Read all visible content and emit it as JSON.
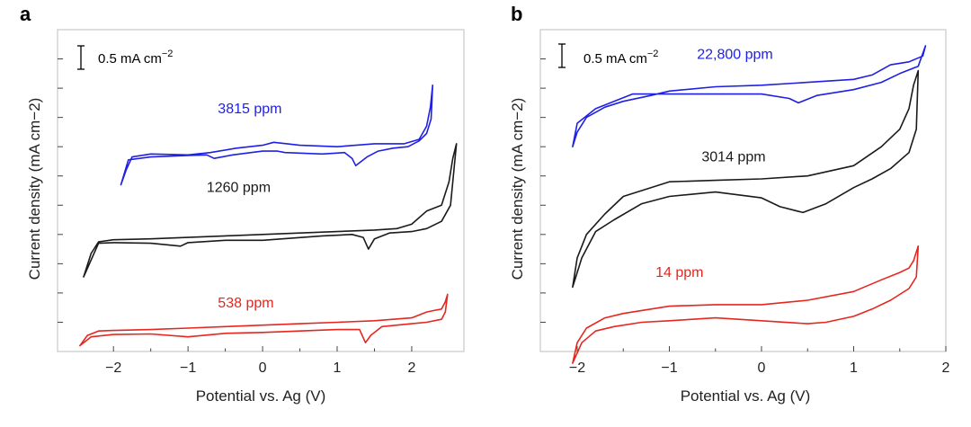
{
  "chart_data": [
    {
      "type": "line",
      "panel_label": "a",
      "xlabel": "Potential vs. Ag (V)",
      "ylabel": "Current density (mA cm−2)",
      "xlim": [
        -2.75,
        2.7
      ],
      "ylim": [
        0,
        11
      ],
      "x_ticks": [
        -2,
        -1,
        0,
        1,
        2
      ],
      "x_tick_labels": [
        "−2",
        "−1",
        "0",
        "1",
        "2"
      ],
      "scale_bar": {
        "label_main": "0.5 mA cm",
        "label_sup": "−2",
        "length": 0.5
      },
      "series": [
        {
          "name": "3815 ppm",
          "label": "3815 ppm",
          "color": "#1f1fe6",
          "label_at": [
            -0.6,
            8.15
          ],
          "x": [
            -1.9,
            -1.83,
            -1.75,
            -1.5,
            -1.0,
            -0.7,
            -0.35,
            0.0,
            0.15,
            0.5,
            1.0,
            1.5,
            1.9,
            2.1,
            2.2,
            2.25,
            2.28,
            2.26,
            2.2,
            2.1,
            1.95,
            1.75,
            1.55,
            1.4,
            1.25,
            1.2,
            1.1,
            0.8,
            0.3,
            0.2,
            0.0,
            -0.4,
            -0.65,
            -0.75,
            -1.0,
            -1.5,
            -1.8,
            -1.9
          ],
          "y": [
            5.7,
            6.2,
            6.65,
            6.75,
            6.72,
            6.8,
            6.95,
            7.05,
            7.15,
            7.05,
            7.0,
            7.1,
            7.1,
            7.25,
            7.7,
            8.35,
            9.1,
            7.95,
            7.45,
            7.2,
            7.0,
            6.95,
            6.85,
            6.65,
            6.35,
            6.6,
            6.8,
            6.75,
            6.8,
            6.85,
            6.85,
            6.72,
            6.6,
            6.72,
            6.7,
            6.65,
            6.55,
            5.7
          ]
        },
        {
          "name": "1260 ppm",
          "label": "1260 ppm",
          "color": "#1a1a1a",
          "label_at": [
            -0.75,
            5.45
          ],
          "x": [
            -2.4,
            -2.3,
            -2.2,
            -2.0,
            -1.5,
            -1.0,
            -0.5,
            0.0,
            0.5,
            1.0,
            1.5,
            1.8,
            2.0,
            2.2,
            2.4,
            2.5,
            2.55,
            2.6,
            2.52,
            2.4,
            2.2,
            2.0,
            1.7,
            1.5,
            1.42,
            1.35,
            1.2,
            0.8,
            0.0,
            -0.5,
            -1.0,
            -1.1,
            -1.5,
            -2.0,
            -2.2,
            -2.4
          ],
          "y": [
            2.55,
            3.35,
            3.75,
            3.82,
            3.85,
            3.9,
            3.95,
            4.0,
            4.05,
            4.1,
            4.15,
            4.2,
            4.35,
            4.8,
            5.0,
            5.8,
            6.6,
            7.1,
            5.0,
            4.45,
            4.2,
            4.1,
            4.05,
            3.85,
            3.5,
            3.9,
            4.0,
            3.95,
            3.8,
            3.8,
            3.72,
            3.6,
            3.7,
            3.72,
            3.7,
            2.55
          ]
        },
        {
          "name": "538 ppm",
          "label": "538 ppm",
          "color": "#e6261f",
          "label_at": [
            -0.6,
            1.5
          ],
          "x": [
            -2.45,
            -2.35,
            -2.2,
            -2.0,
            -1.5,
            -1.0,
            -0.5,
            0.0,
            0.5,
            1.0,
            1.5,
            2.0,
            2.2,
            2.3,
            2.4,
            2.45,
            2.48,
            2.45,
            2.4,
            2.2,
            2.0,
            1.6,
            1.45,
            1.38,
            1.3,
            1.0,
            0.0,
            -0.5,
            -1.0,
            -1.5,
            -2.0,
            -2.3,
            -2.45
          ],
          "y": [
            0.2,
            0.55,
            0.7,
            0.72,
            0.75,
            0.8,
            0.85,
            0.9,
            0.95,
            1.0,
            1.05,
            1.15,
            1.35,
            1.4,
            1.45,
            1.7,
            1.95,
            1.35,
            1.1,
            1.0,
            0.95,
            0.85,
            0.55,
            0.3,
            0.75,
            0.75,
            0.65,
            0.62,
            0.5,
            0.6,
            0.58,
            0.5,
            0.2
          ]
        }
      ]
    },
    {
      "type": "line",
      "panel_label": "b",
      "xlabel": "Potential vs. Ag (V)",
      "ylabel": "Current density (mA cm−2)",
      "xlim": [
        -2.4,
        2.0
      ],
      "ylim": [
        0,
        11
      ],
      "x_ticks": [
        -2,
        -1,
        0,
        1,
        2
      ],
      "x_tick_labels": [
        "−2",
        "−1",
        "0",
        "1",
        "2"
      ],
      "scale_bar": {
        "label_main": "0.5 mA cm",
        "label_sup": "−2",
        "length": 0.5
      },
      "series": [
        {
          "name": "22,800 ppm",
          "label": "22,800 ppm",
          "color": "#1f1fe6",
          "label_at": [
            -0.7,
            10.0
          ],
          "x": [
            -2.05,
            -2.0,
            -1.9,
            -1.7,
            -1.5,
            -1.2,
            -1.0,
            -0.5,
            0.0,
            0.5,
            1.0,
            1.2,
            1.4,
            1.6,
            1.75,
            1.78,
            1.7,
            1.5,
            1.3,
            1.0,
            0.6,
            0.4,
            0.3,
            0.0,
            -0.5,
            -1.0,
            -1.4,
            -1.6,
            -1.8,
            -2.0,
            -2.05
          ],
          "y": [
            7.0,
            7.5,
            8.0,
            8.35,
            8.55,
            8.75,
            8.9,
            9.05,
            9.1,
            9.2,
            9.3,
            9.45,
            9.8,
            9.9,
            10.1,
            10.45,
            9.75,
            9.5,
            9.2,
            8.95,
            8.75,
            8.5,
            8.65,
            8.8,
            8.8,
            8.8,
            8.8,
            8.55,
            8.3,
            7.8,
            7.0
          ]
        },
        {
          "name": "3014 ppm",
          "label": "3014 ppm",
          "color": "#1a1a1a",
          "label_at": [
            -0.65,
            6.5
          ],
          "x": [
            -2.05,
            -2.0,
            -1.9,
            -1.7,
            -1.5,
            -1.0,
            -0.5,
            0.0,
            0.5,
            1.0,
            1.3,
            1.5,
            1.6,
            1.65,
            1.7,
            1.68,
            1.6,
            1.4,
            1.2,
            1.0,
            0.7,
            0.45,
            0.2,
            0.0,
            -0.5,
            -1.0,
            -1.3,
            -1.6,
            -1.8,
            -1.95,
            -2.05
          ],
          "y": [
            2.2,
            3.2,
            4.0,
            4.7,
            5.3,
            5.8,
            5.85,
            5.9,
            6.0,
            6.35,
            7.0,
            7.6,
            8.3,
            9.1,
            9.6,
            7.6,
            6.8,
            6.25,
            5.9,
            5.6,
            5.05,
            4.75,
            4.95,
            5.25,
            5.45,
            5.3,
            5.05,
            4.5,
            4.1,
            3.2,
            2.2
          ]
        },
        {
          "name": "14 ppm",
          "label": "14 ppm",
          "color": "#e6261f",
          "label_at": [
            -1.15,
            2.55
          ],
          "x": [
            -2.05,
            -2.0,
            -1.9,
            -1.7,
            -1.5,
            -1.0,
            -0.5,
            0.0,
            0.5,
            1.0,
            1.3,
            1.5,
            1.6,
            1.65,
            1.7,
            1.68,
            1.6,
            1.4,
            1.2,
            1.0,
            0.7,
            0.5,
            0.0,
            -0.5,
            -1.0,
            -1.3,
            -1.6,
            -1.8,
            -1.95,
            -2.05
          ],
          "y": [
            -0.4,
            0.3,
            0.8,
            1.15,
            1.3,
            1.55,
            1.6,
            1.6,
            1.75,
            2.05,
            2.45,
            2.7,
            2.85,
            3.1,
            3.6,
            2.55,
            2.15,
            1.75,
            1.45,
            1.2,
            1.0,
            0.95,
            1.05,
            1.15,
            1.05,
            1.0,
            0.85,
            0.7,
            0.3,
            -0.4
          ]
        }
      ]
    }
  ]
}
